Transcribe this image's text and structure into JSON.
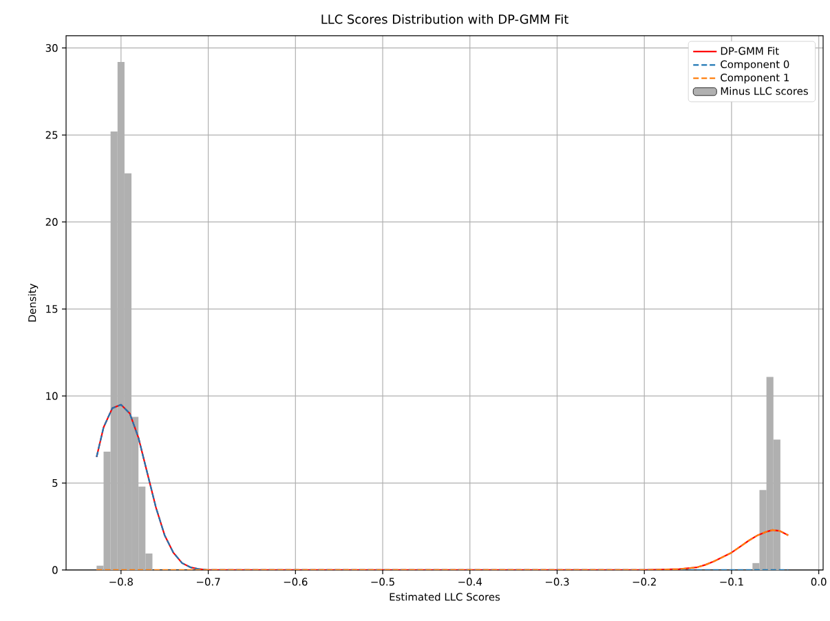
{
  "chart_data": {
    "type": "histogram",
    "title": "LLC Scores Distribution with DP-GMM Fit",
    "xlabel": "Estimated LLC Scores",
    "ylabel": "Density",
    "xlim": [
      -0.863,
      0.005
    ],
    "ylim": [
      0,
      30.7
    ],
    "xticks": [
      {
        "value": -0.8,
        "label": "−0.8"
      },
      {
        "value": -0.7,
        "label": "−0.7"
      },
      {
        "value": -0.6,
        "label": "−0.6"
      },
      {
        "value": -0.5,
        "label": "−0.5"
      },
      {
        "value": -0.4,
        "label": "−0.4"
      },
      {
        "value": -0.3,
        "label": "−0.3"
      },
      {
        "value": -0.2,
        "label": "−0.2"
      },
      {
        "value": -0.1,
        "label": "−0.1"
      },
      {
        "value": 0.0,
        "label": "0.0"
      }
    ],
    "yticks": [
      0,
      5,
      10,
      15,
      20,
      25,
      30
    ],
    "grid": true,
    "legend": "top right",
    "series": [
      {
        "type": "line",
        "name": "DP-GMM Fit",
        "color": "#ff0000",
        "line_style": "solid",
        "x": [
          -0.828,
          -0.82,
          -0.81,
          -0.8,
          -0.79,
          -0.78,
          -0.77,
          -0.76,
          -0.75,
          -0.74,
          -0.73,
          -0.72,
          -0.71,
          -0.7,
          -0.2,
          -0.16,
          -0.14,
          -0.13,
          -0.12,
          -0.11,
          -0.1,
          -0.09,
          -0.08,
          -0.07,
          -0.06,
          -0.053,
          -0.045,
          -0.035
        ],
        "values": [
          6.5,
          8.2,
          9.3,
          9.5,
          9.0,
          7.6,
          5.6,
          3.6,
          2.0,
          1.0,
          0.4,
          0.15,
          0.05,
          0,
          0,
          0.05,
          0.15,
          0.3,
          0.5,
          0.75,
          1.0,
          1.35,
          1.7,
          2.0,
          2.2,
          2.3,
          2.25,
          2.0
        ]
      },
      {
        "type": "line",
        "name": "Component 0",
        "color": "#1f77b4",
        "line_style": "dashed",
        "x": [
          -0.828,
          -0.82,
          -0.81,
          -0.8,
          -0.79,
          -0.78,
          -0.77,
          -0.76,
          -0.75,
          -0.74,
          -0.73,
          -0.72,
          -0.71,
          -0.7,
          -0.035
        ],
        "values": [
          6.5,
          8.2,
          9.3,
          9.5,
          9.0,
          7.6,
          5.6,
          3.6,
          2.0,
          1.0,
          0.4,
          0.15,
          0.05,
          0,
          0
        ]
      },
      {
        "type": "line",
        "name": "Component 1",
        "color": "#ff7f0e",
        "line_style": "dashed",
        "x": [
          -0.828,
          -0.2,
          -0.16,
          -0.14,
          -0.13,
          -0.12,
          -0.11,
          -0.1,
          -0.09,
          -0.08,
          -0.07,
          -0.06,
          -0.053,
          -0.045,
          -0.035
        ],
        "values": [
          0,
          0,
          0.05,
          0.15,
          0.3,
          0.5,
          0.75,
          1.0,
          1.35,
          1.7,
          2.0,
          2.2,
          2.3,
          2.25,
          2.0
        ]
      },
      {
        "name": "Minus LLC scores",
        "color": "#b0b0b0",
        "bins": [
          -0.828,
          -0.82,
          -0.812,
          -0.804,
          -0.796,
          -0.788,
          -0.78,
          -0.772,
          -0.764,
          -0.756,
          -0.748,
          -0.74,
          -0.732,
          -0.724,
          -0.716,
          -0.708,
          -0.7,
          -0.692,
          -0.684,
          -0.676,
          -0.668,
          -0.66,
          -0.652,
          -0.644,
          -0.636,
          -0.628,
          -0.62,
          -0.612,
          -0.604,
          -0.596,
          -0.588,
          -0.58,
          -0.572,
          -0.564,
          -0.556,
          -0.548,
          -0.54,
          -0.532,
          -0.524,
          -0.516,
          -0.508,
          -0.5,
          -0.492,
          -0.484,
          -0.476,
          -0.468,
          -0.46,
          -0.452,
          -0.444,
          -0.436,
          -0.428,
          -0.42,
          -0.412,
          -0.404,
          -0.396,
          -0.388,
          -0.38,
          -0.372,
          -0.364,
          -0.356,
          -0.348,
          -0.34,
          -0.332,
          -0.324,
          -0.316,
          -0.308,
          -0.3,
          -0.292,
          -0.284,
          -0.276,
          -0.268,
          -0.26,
          -0.252,
          -0.244,
          -0.236,
          -0.228,
          -0.22,
          -0.212,
          -0.204,
          -0.196,
          -0.188,
          -0.18,
          -0.172,
          -0.164,
          -0.156,
          -0.148,
          -0.14,
          -0.132,
          -0.124,
          -0.116,
          -0.108,
          -0.1,
          -0.092,
          -0.084,
          -0.076,
          -0.068,
          -0.06,
          -0.052,
          -0.044,
          -0.036,
          -0.028
        ],
        "values": [
          0.25,
          6.8,
          25.2,
          29.2,
          22.8,
          8.8,
          4.8,
          0.95,
          0,
          0,
          0,
          0,
          0,
          0,
          0,
          0,
          0,
          0,
          0,
          0,
          0,
          0,
          0,
          0,
          0,
          0,
          0,
          0,
          0,
          0,
          0,
          0,
          0,
          0,
          0,
          0,
          0,
          0,
          0,
          0,
          0,
          0,
          0,
          0,
          0,
          0,
          0,
          0,
          0,
          0,
          0,
          0,
          0,
          0,
          0,
          0,
          0,
          0,
          0,
          0,
          0,
          0,
          0,
          0,
          0,
          0,
          0,
          0,
          0,
          0,
          0,
          0,
          0,
          0,
          0,
          0,
          0,
          0,
          0,
          0,
          0,
          0,
          0,
          0,
          0,
          0,
          0,
          0,
          0,
          0,
          0,
          0,
          0,
          0,
          0.4,
          4.6,
          11.1,
          7.5,
          0,
          0
        ]
      }
    ]
  }
}
